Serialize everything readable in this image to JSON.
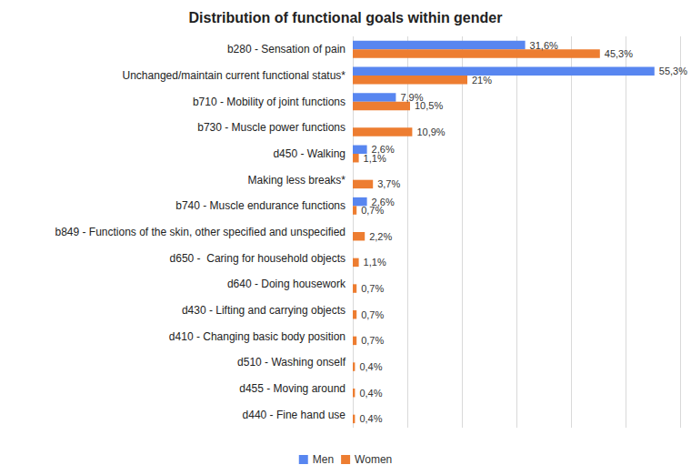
{
  "chart_data": {
    "type": "bar",
    "title": "Distribution of functional goals within gender",
    "orientation": "horizontal",
    "categories": [
      "b280 - Sensation of pain",
      "Unchanged/maintain current functional status*",
      "b710 - Mobility of joint functions",
      "b730 - Muscle power functions",
      "d450 - Walking",
      "Making less breaks*",
      "b740 - Muscle endurance functions",
      "b849 - Functions of the skin, other specified and unspecified",
      "d650 -  Caring for household objects",
      "d640 - Doing housework",
      "d430 - Lifting and carrying objects",
      "d410 - Changing basic body position",
      "d510 - Washing onself",
      "d455 - Moving around",
      "d440 - Fine hand use"
    ],
    "series": [
      {
        "name": "Men",
        "color": "#5886f0",
        "values": [
          31.6,
          55.3,
          7.9,
          null,
          2.6,
          null,
          2.6,
          null,
          null,
          null,
          null,
          null,
          null,
          null,
          null
        ],
        "value_labels": [
          "31,6%",
          "55,3%",
          "7,9%",
          null,
          "2,6%",
          null,
          "2,6%",
          null,
          null,
          null,
          null,
          null,
          null,
          null,
          null
        ]
      },
      {
        "name": "Women",
        "color": "#ed7d31",
        "values": [
          45.3,
          21,
          10.5,
          10.9,
          1.1,
          3.7,
          0.7,
          2.2,
          1.1,
          0.7,
          0.7,
          0.7,
          0.4,
          0.4,
          0.4
        ],
        "value_labels": [
          "45,3%",
          "21%",
          "10,5%",
          "10,9%",
          "1,1%",
          "3,7%",
          "0,7%",
          "2,2%",
          "1,1%",
          "0,7%",
          "0,7%",
          "0,7%",
          "0,4%",
          "0,4%",
          "0,4%"
        ]
      }
    ],
    "xlim": [
      0,
      60
    ],
    "xticks": [
      0,
      10,
      20,
      30,
      40,
      50,
      60
    ],
    "grid": true,
    "legend": "bottom",
    "data_labels": true,
    "tick_labels": "y"
  }
}
